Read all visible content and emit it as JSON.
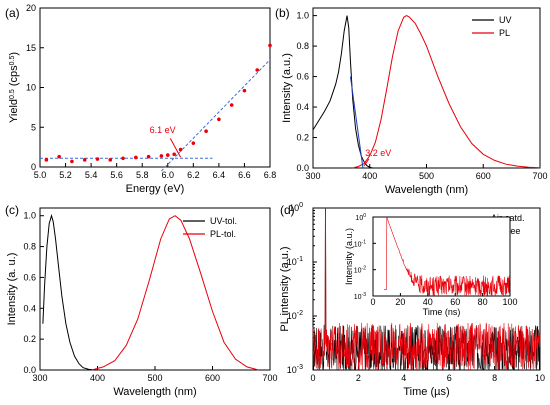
{
  "colors": {
    "black": "#000000",
    "red": "#e8000b",
    "blue": "#1f3fbf",
    "fitblue": "#3f6ad8"
  },
  "chart_data": [
    {
      "panel": "(a)",
      "type": "scatter",
      "xlabel": "Energy (eV)",
      "ylabel_parts": [
        "Yield",
        "0.5",
        " (cps",
        "0.5",
        ")"
      ],
      "xlim": [
        5.0,
        6.8
      ],
      "ylim": [
        0,
        20
      ],
      "xticks": [
        "5.0",
        "5.2",
        "5.4",
        "5.6",
        "5.8",
        "6.0",
        "6.2",
        "6.4",
        "6.6",
        "6.8"
      ],
      "yticks": [
        "0",
        "5",
        "10",
        "15",
        "20"
      ],
      "series": [
        {
          "color": "#e8000b",
          "x": [
            5.05,
            5.15,
            5.25,
            5.35,
            5.45,
            5.55,
            5.65,
            5.75,
            5.85,
            5.95,
            6.0,
            6.05,
            6.1,
            6.2,
            6.3,
            6.4,
            6.5,
            6.6,
            6.7,
            6.8
          ],
          "y": [
            0.9,
            1.3,
            0.7,
            0.9,
            1.0,
            0.9,
            1.1,
            1.2,
            1.3,
            1.4,
            1.5,
            1.6,
            2.2,
            3.0,
            4.5,
            6.0,
            7.8,
            9.6,
            12.2,
            15.3
          ]
        }
      ],
      "fit_lines": [
        {
          "x": [
            5.0,
            6.35
          ],
          "y": [
            1.1,
            1.1
          ]
        },
        {
          "x": [
            5.95,
            6.8
          ],
          "y": [
            -0.5,
            13.5
          ]
        }
      ],
      "annotation": {
        "text": "6.1 eV",
        "x": 6.1,
        "y": 1.1
      }
    },
    {
      "panel": "(b)",
      "type": "line",
      "xlabel": "Wavelength (nm)",
      "ylabel": "Intensity (a.u.)",
      "xlim": [
        300,
        700
      ],
      "ylim": [
        0,
        1.05
      ],
      "xticks": [
        "300",
        "400",
        "500",
        "600",
        "700"
      ],
      "yticks": [
        "0.0",
        "0.2",
        "0.4",
        "0.6",
        "0.8",
        "1.0"
      ],
      "legend": [
        "UV",
        "PL"
      ],
      "legend_position": "top-right",
      "series": [
        {
          "name": "UV",
          "color": "#000000",
          "x": [
            300,
            310,
            320,
            330,
            340,
            345,
            350,
            355,
            360,
            363,
            366,
            370,
            375,
            380,
            385,
            390,
            395,
            400,
            405
          ],
          "y": [
            0.25,
            0.31,
            0.37,
            0.44,
            0.55,
            0.63,
            0.75,
            0.9,
            1.0,
            0.92,
            0.7,
            0.45,
            0.26,
            0.15,
            0.08,
            0.04,
            0.015,
            0.005,
            0.0
          ]
        },
        {
          "name": "PL",
          "color": "#e8000b",
          "x": [
            370,
            380,
            390,
            400,
            410,
            420,
            430,
            440,
            450,
            460,
            465,
            470,
            480,
            490,
            500,
            520,
            540,
            560,
            580,
            600,
            620,
            640,
            660,
            680,
            700
          ],
          "y": [
            0.0,
            0.01,
            0.03,
            0.08,
            0.17,
            0.32,
            0.52,
            0.73,
            0.9,
            0.99,
            1.0,
            0.99,
            0.95,
            0.88,
            0.8,
            0.6,
            0.42,
            0.27,
            0.16,
            0.09,
            0.05,
            0.025,
            0.012,
            0.005,
            0.002
          ]
        }
      ],
      "tangent_line": {
        "x": [
          366,
          388
        ],
        "y": [
          0.6,
          0.0
        ]
      },
      "annotation": {
        "text": "3.2 eV",
        "x": 388,
        "y": 0.0
      }
    },
    {
      "panel": "(c)",
      "type": "line",
      "xlabel": "Wavelength (nm)",
      "ylabel": "Intensity (a. u.)",
      "xlim": [
        300,
        700
      ],
      "ylim": [
        0,
        1.05
      ],
      "xticks": [
        "300",
        "400",
        "500",
        "600",
        "700"
      ],
      "yticks": [
        "0.0",
        "0.2",
        "0.4",
        "0.6",
        "0.8",
        "1.0"
      ],
      "legend": [
        "UV-tol.",
        "PL-tol."
      ],
      "legend_position": "top-right",
      "series": [
        {
          "name": "UV-tol.",
          "color": "#000000",
          "x": [
            305,
            308,
            312,
            316,
            320,
            323,
            327,
            332,
            338,
            345,
            352,
            360,
            368,
            375,
            385,
            395
          ],
          "y": [
            0.3,
            0.55,
            0.8,
            0.95,
            1.0,
            0.96,
            0.85,
            0.68,
            0.48,
            0.3,
            0.18,
            0.09,
            0.04,
            0.015,
            0.004,
            0.0
          ]
        },
        {
          "name": "PL-tol.",
          "color": "#e8000b",
          "x": [
            390,
            410,
            430,
            450,
            470,
            490,
            510,
            525,
            535,
            545,
            560,
            580,
            600,
            620,
            640,
            660,
            680
          ],
          "y": [
            0.0,
            0.02,
            0.06,
            0.16,
            0.33,
            0.58,
            0.85,
            0.98,
            1.0,
            0.97,
            0.85,
            0.62,
            0.38,
            0.18,
            0.07,
            0.02,
            0.0
          ]
        }
      ]
    },
    {
      "panel": "(d)",
      "type": "line",
      "xlabel": "Time (µs)",
      "ylabel": "PL intensity (a.u.)",
      "xlim": [
        0,
        10
      ],
      "yscale": "log",
      "ylim": [
        0.001,
        1
      ],
      "xticks": [
        "0",
        "2",
        "4",
        "6",
        "8",
        "10"
      ],
      "ytick_bases": [
        "10",
        "10",
        "10",
        "10"
      ],
      "ytick_exps": [
        "-3",
        "-2",
        "-1",
        "0"
      ],
      "legend": [
        "Air-satd.",
        "O2-free"
      ],
      "legend_position": "top-right",
      "series": [
        {
          "name": "Air-satd.",
          "color": "#000000",
          "noise_level": 0.0022,
          "peak_x": 0.55,
          "peak_y": 1.0
        },
        {
          "name": "O2-free",
          "color": "#e8000b",
          "noise_level": 0.0024,
          "peak_x": 0.55,
          "peak_y": 1.0
        }
      ],
      "inset": {
        "type": "line",
        "xlabel": "Time (ns)",
        "ylabel": "Intensity (a.u.)",
        "xlim": [
          0,
          100
        ],
        "yscale": "log",
        "ylim": [
          0.001,
          1
        ],
        "xticks": [
          "0",
          "20",
          "40",
          "60",
          "80",
          "100"
        ],
        "ytick_exps": [
          "-3",
          "-2",
          "-1",
          "0"
        ],
        "series": [
          {
            "color": "#e8000b",
            "peak_x": 10,
            "decay_ns": 3.0,
            "floor": 0.0022
          }
        ]
      }
    }
  ]
}
